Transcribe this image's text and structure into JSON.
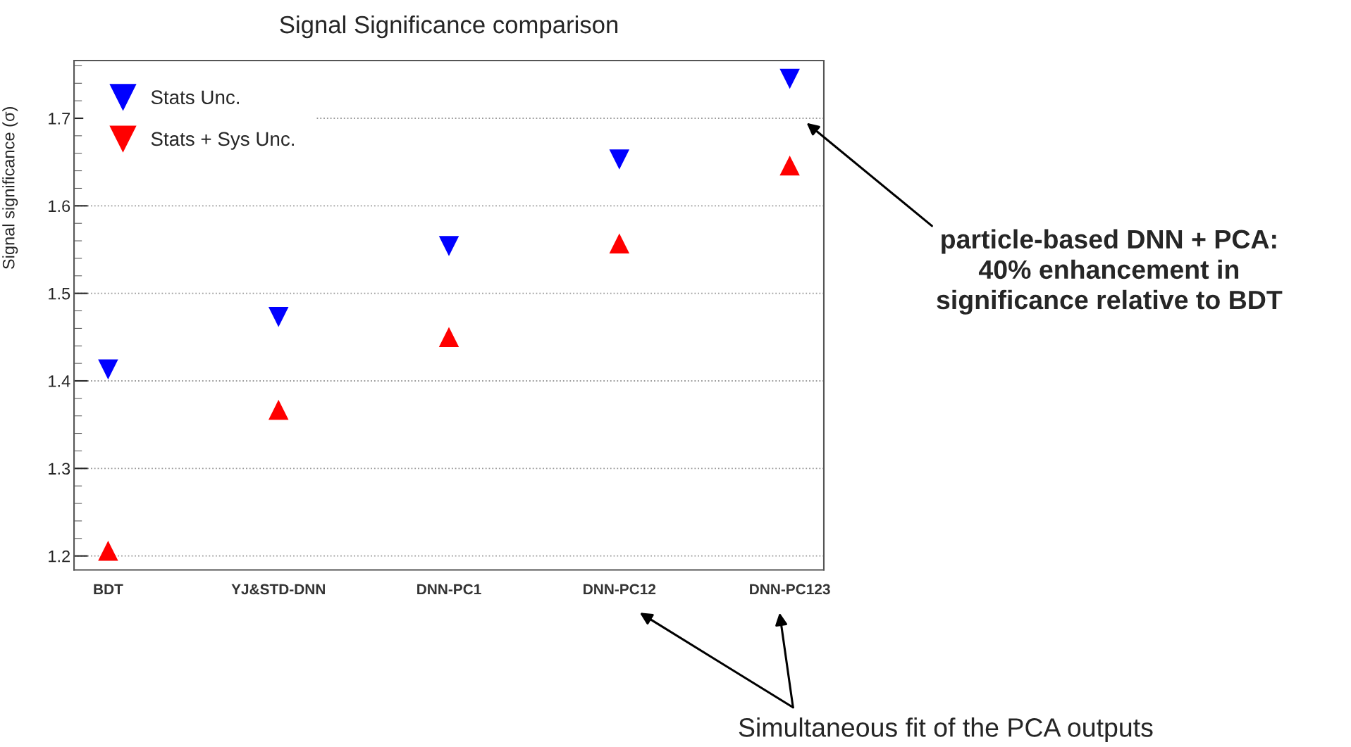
{
  "chart_data": {
    "type": "scatter",
    "title": "Signal Significance comparison",
    "ylabel": "Signal significance (σ)",
    "categories": [
      "BDT",
      "YJ&STD-DNN",
      "DNN-PC1",
      "DNN-PC12",
      "DNN-PC123"
    ],
    "series": [
      {
        "name": "Stats Unc.",
        "color": "#0000ff",
        "marker": "triangle_down",
        "values": [
          1.413,
          1.473,
          1.554,
          1.653,
          1.745
        ]
      },
      {
        "name": "Stats + Sys Unc.",
        "color": "#ff0000",
        "marker": "triangle",
        "values": [
          1.206,
          1.367,
          1.45,
          1.557,
          1.646
        ]
      }
    ],
    "ylim": [
      1.184,
      1.766
    ],
    "yticks": [
      1.2,
      1.3,
      1.4,
      1.5,
      1.6,
      1.7
    ],
    "grid": "y",
    "legend": "top left",
    "annotations": [
      "particle-based DNN + PCA:\n40% enhancement in\nsignificance relative to BDT",
      "Simultaneous fit of the PCA outputs"
    ]
  }
}
